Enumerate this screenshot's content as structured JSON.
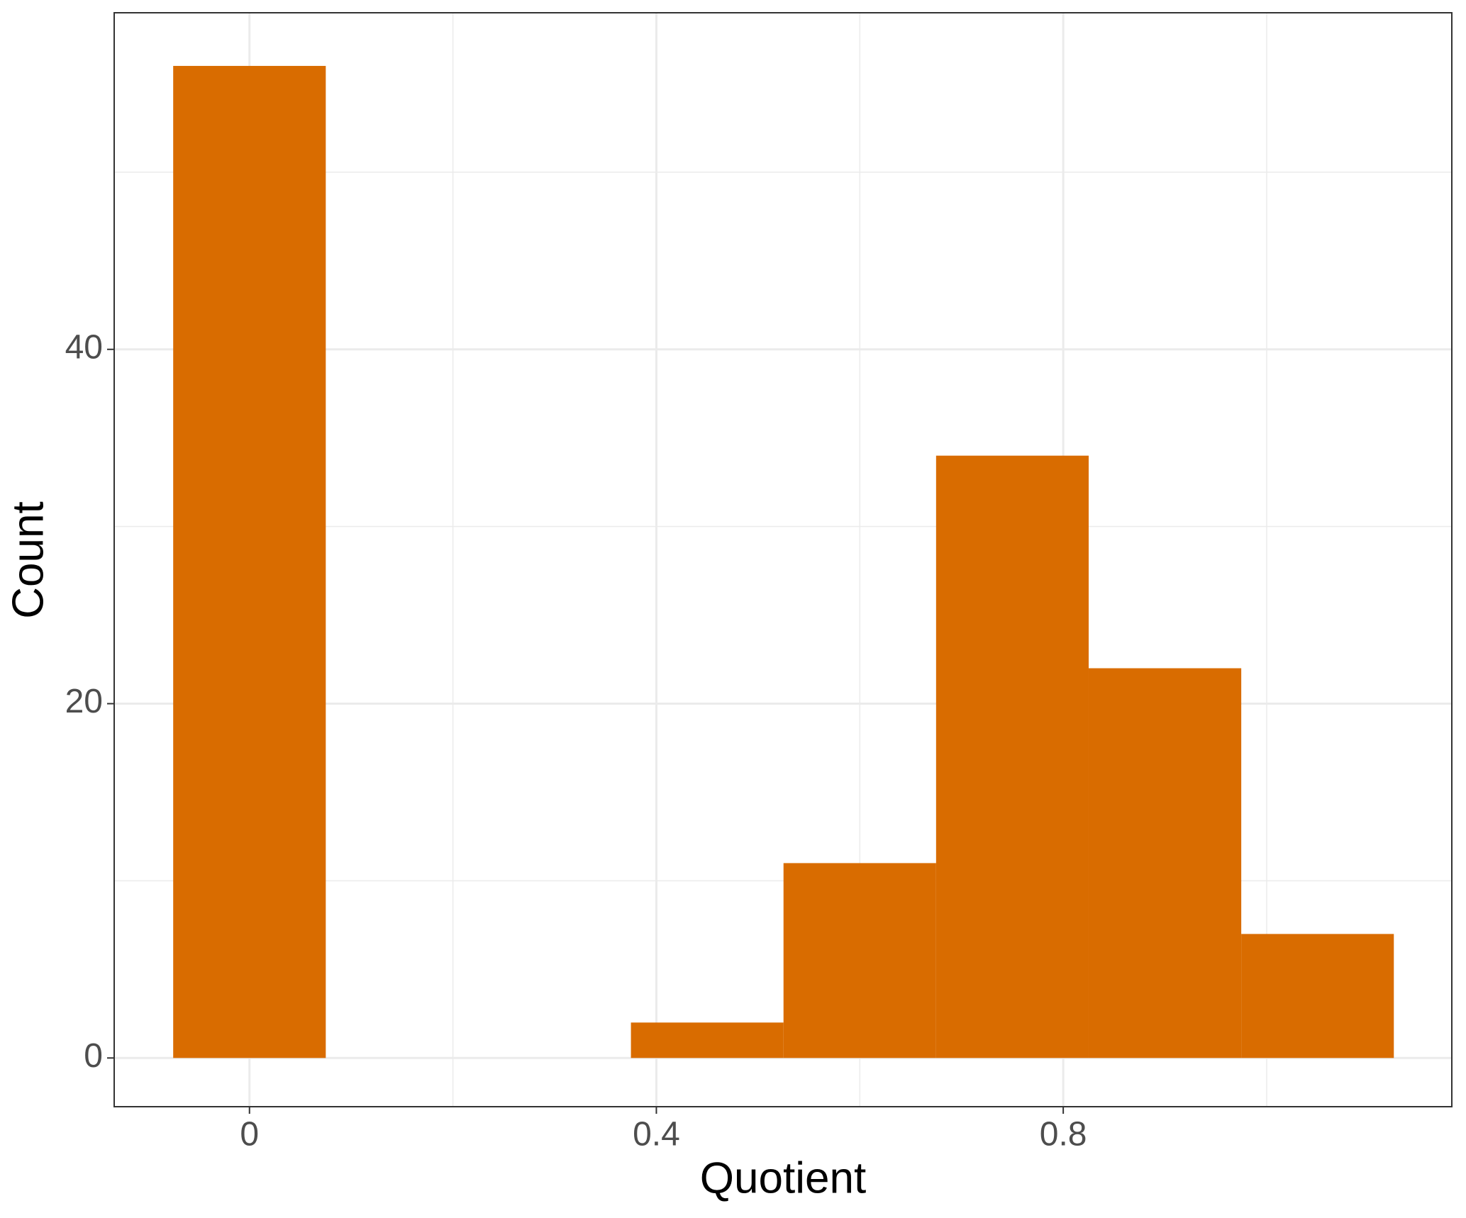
{
  "chart_data": {
    "type": "histogram",
    "x_label": "Quotient",
    "y_label": "Count",
    "bins": [
      -0.075,
      0.075,
      0.225,
      0.375,
      0.525,
      0.675,
      0.825,
      0.975,
      1.125
    ],
    "values": [
      56,
      0,
      0,
      2,
      11,
      34,
      22,
      7
    ],
    "color": "#d96c00",
    "xlim": [
      -0.133,
      1.182
    ],
    "ylim": [
      -2.75,
      59
    ],
    "xticks": [
      0,
      0.4,
      0.8
    ],
    "yticks": [
      0,
      20,
      40
    ],
    "minor_xticks": [
      0.2,
      0.6,
      1.0
    ],
    "minor_yticks": [
      10,
      30,
      50
    ],
    "grid": true
  }
}
